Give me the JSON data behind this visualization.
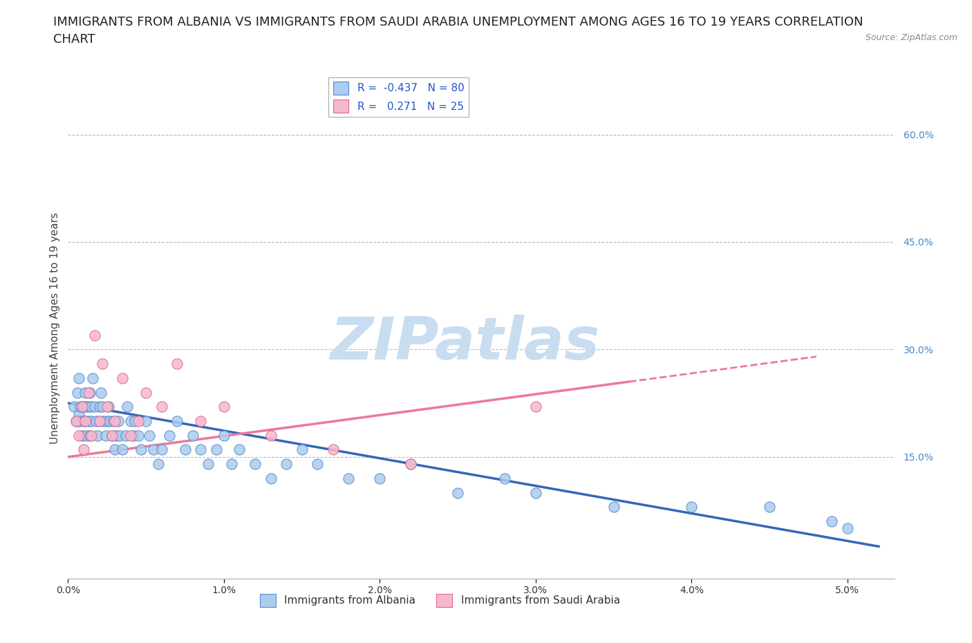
{
  "title_line1": "IMMIGRANTS FROM ALBANIA VS IMMIGRANTS FROM SAUDI ARABIA UNEMPLOYMENT AMONG AGES 16 TO 19 YEARS CORRELATION",
  "title_line2": "CHART",
  "source": "Source: ZipAtlas.com",
  "ylabel": "Unemployment Among Ages 16 to 19 years",
  "xlim": [
    0.0,
    5.3
  ],
  "ylim": [
    -2.0,
    68.0
  ],
  "ytick_vals": [
    15.0,
    30.0,
    45.0,
    60.0
  ],
  "xtick_vals": [
    0.0,
    1.0,
    2.0,
    3.0,
    4.0,
    5.0
  ],
  "albania": {
    "name": "Immigrants from Albania",
    "color": "#aaccee",
    "edge_color": "#5588cc",
    "R": -0.437,
    "N": 80,
    "trend_color": "#3366bb",
    "trend_style": "solid",
    "trend_x": [
      0.0,
      5.2
    ],
    "trend_y": [
      22.5,
      2.5
    ],
    "x": [
      0.04,
      0.05,
      0.06,
      0.06,
      0.07,
      0.07,
      0.08,
      0.08,
      0.09,
      0.09,
      0.1,
      0.1,
      0.11,
      0.11,
      0.12,
      0.12,
      0.13,
      0.13,
      0.14,
      0.14,
      0.15,
      0.15,
      0.16,
      0.17,
      0.18,
      0.19,
      0.2,
      0.2,
      0.21,
      0.22,
      0.23,
      0.24,
      0.25,
      0.26,
      0.27,
      0.28,
      0.29,
      0.3,
      0.31,
      0.32,
      0.33,
      0.35,
      0.37,
      0.38,
      0.4,
      0.42,
      0.43,
      0.45,
      0.47,
      0.5,
      0.52,
      0.55,
      0.58,
      0.6,
      0.65,
      0.7,
      0.75,
      0.8,
      0.85,
      0.9,
      0.95,
      1.0,
      1.05,
      1.1,
      1.2,
      1.3,
      1.4,
      1.5,
      1.6,
      1.8,
      2.0,
      2.2,
      2.5,
      2.8,
      3.0,
      3.5,
      4.0,
      4.5,
      4.9,
      5.0
    ],
    "y": [
      22,
      20,
      24,
      20,
      26,
      21,
      20,
      22,
      18,
      22,
      22,
      20,
      24,
      20,
      22,
      18,
      20,
      22,
      18,
      24,
      22,
      20,
      26,
      22,
      20,
      18,
      22,
      20,
      24,
      22,
      20,
      18,
      20,
      22,
      20,
      18,
      20,
      16,
      18,
      20,
      18,
      16,
      18,
      22,
      20,
      18,
      20,
      18,
      16,
      20,
      18,
      16,
      14,
      16,
      18,
      20,
      16,
      18,
      16,
      14,
      16,
      18,
      14,
      16,
      14,
      12,
      14,
      16,
      14,
      12,
      12,
      14,
      10,
      12,
      10,
      8,
      8,
      8,
      6,
      5
    ]
  },
  "saudi": {
    "name": "Immigrants from Saudi Arabia",
    "color": "#f8b8cc",
    "edge_color": "#dd6688",
    "R": 0.271,
    "N": 25,
    "trend_color": "#ee7799",
    "trend_style": "solid",
    "trend_x": [
      0.0,
      4.8
    ],
    "trend_y": [
      15.0,
      29.0
    ],
    "x": [
      0.05,
      0.07,
      0.09,
      0.1,
      0.11,
      0.13,
      0.15,
      0.17,
      0.2,
      0.22,
      0.25,
      0.28,
      0.3,
      0.35,
      0.4,
      0.45,
      0.5,
      0.6,
      0.7,
      0.85,
      1.0,
      1.3,
      1.7,
      2.2,
      3.0
    ],
    "y": [
      20,
      18,
      22,
      16,
      20,
      24,
      18,
      32,
      20,
      28,
      22,
      18,
      20,
      26,
      18,
      20,
      24,
      22,
      28,
      20,
      22,
      18,
      16,
      14,
      22
    ]
  },
  "watermark_zip": "ZIP",
  "watermark_atlas": "atlas",
  "watermark_color": "#c8ddf0",
  "background_color": "#ffffff",
  "grid_color": "#bbbbbb",
  "title_fontsize": 13,
  "axis_label_fontsize": 11,
  "tick_fontsize": 10,
  "legend_fontsize": 11,
  "tick_color": "#4488cc"
}
